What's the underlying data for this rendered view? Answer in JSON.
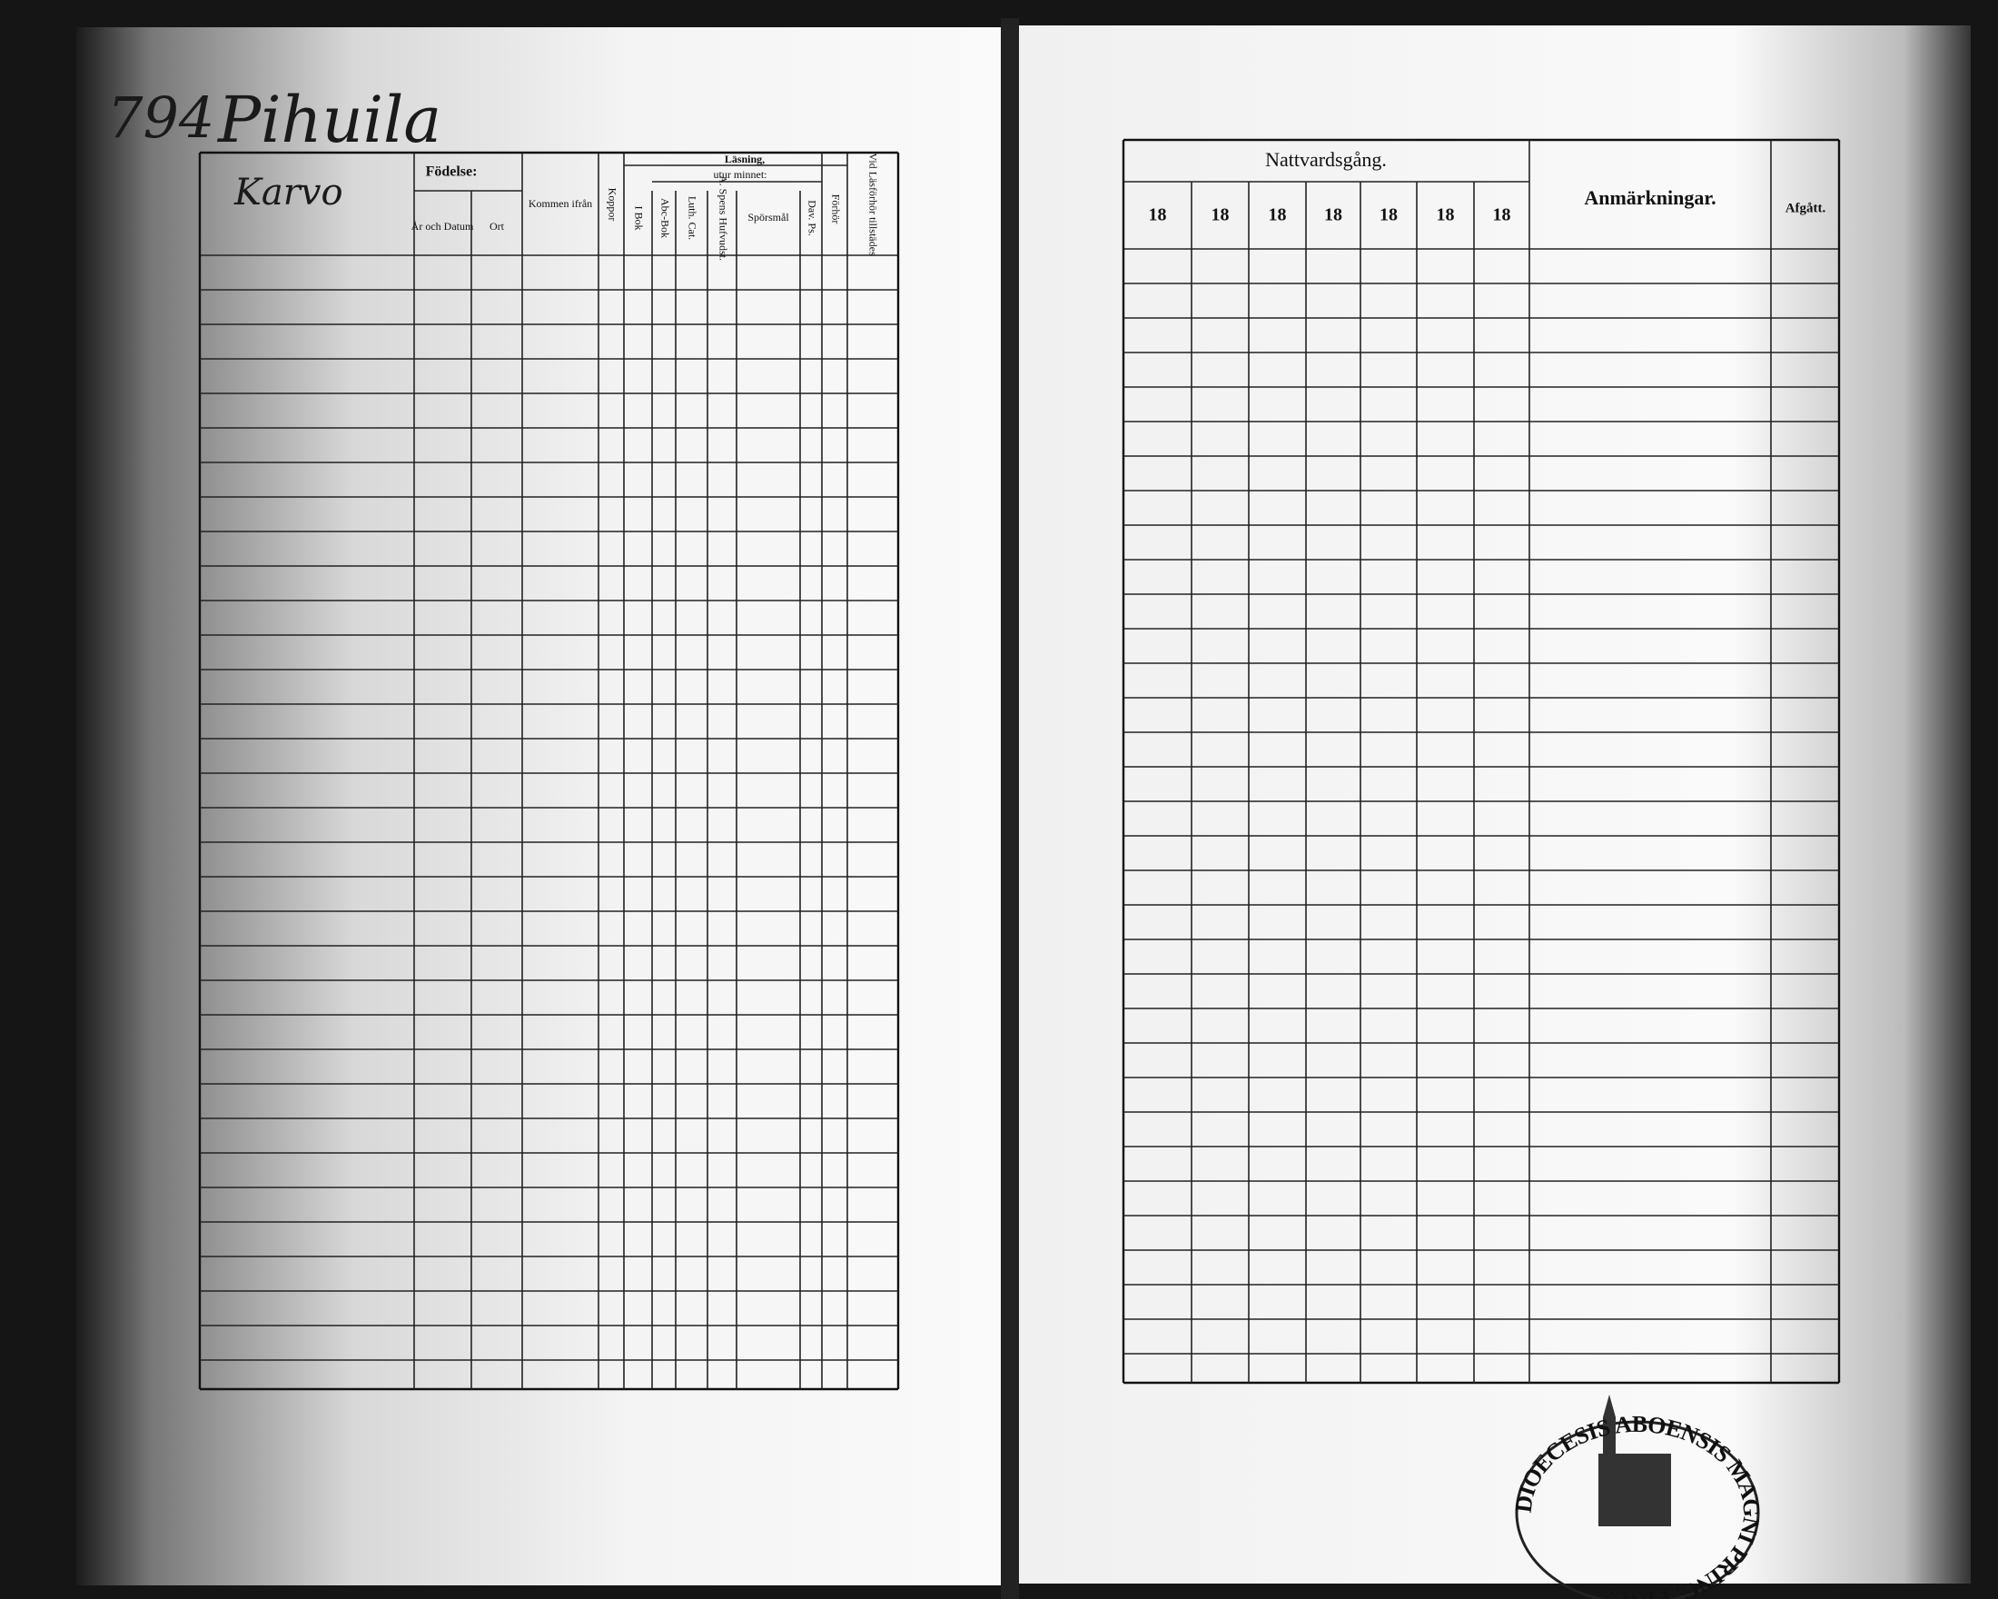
{
  "left_page": {
    "page_number": "794",
    "village": "Pihuila",
    "farm": "Karvo",
    "headers": {
      "birth": "Födelse:",
      "year_date": "År och Datum",
      "place": "Ort",
      "came_from": "Kommen ifrån",
      "smallpox": "Koppor",
      "reading": "Läsning,",
      "by_heart": "utur minnet:",
      "in_book": "I Bok",
      "abc_book": "Abc-Bok",
      "luth_cat": "Luth. Cat.",
      "spens": "A. Spens Hufvudst.",
      "questions": "Spörsmål",
      "dav_ps": "Dav. Ps.",
      "hearing": "Förhör",
      "present": "Vid Läsförhör tillstädes"
    }
  },
  "right_page": {
    "group_header": "Nattvardsgång.",
    "year_headers": [
      "18",
      "18",
      "18",
      "18",
      "18",
      "18",
      "18"
    ],
    "remarks_header": "Anmärkningar.",
    "departed_header": "Afgått."
  },
  "stamp": {
    "text": "DIOECESIS ABOENSIS MAGNI PRINC. FINL."
  }
}
